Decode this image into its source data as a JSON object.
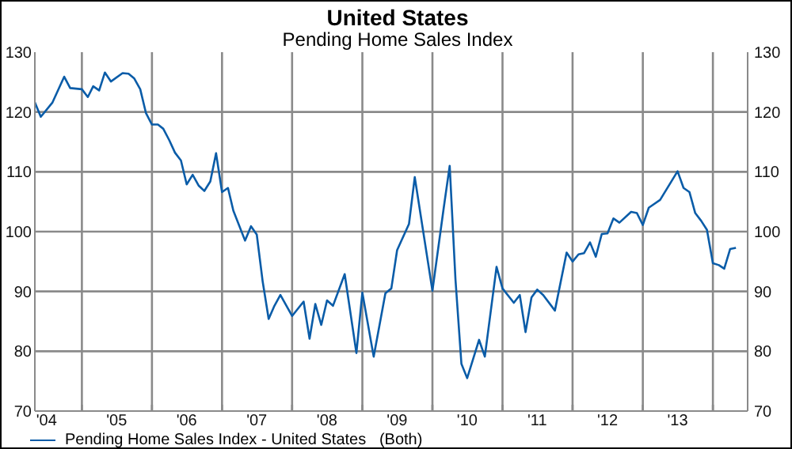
{
  "chart_data": {
    "type": "line",
    "title": "United States",
    "subtitle": "Pending Home Sales Index",
    "x": [
      "2004-05",
      "2004-06",
      "2004-08",
      "2004-10",
      "2004-11",
      "2005-01",
      "2005-02",
      "2005-03",
      "2005-04",
      "2005-05",
      "2005-06",
      "2005-08",
      "2005-09",
      "2005-10",
      "2005-11",
      "2005-12",
      "2006-01",
      "2006-02",
      "2006-03",
      "2006-04",
      "2006-05",
      "2006-06",
      "2006-07",
      "2006-08",
      "2006-09",
      "2006-10",
      "2006-11",
      "2006-12",
      "2007-01",
      "2007-02",
      "2007-03",
      "2007-05",
      "2007-06",
      "2007-07",
      "2007-08",
      "2007-09",
      "2007-10",
      "2007-11",
      "2008-01",
      "2008-03",
      "2008-04",
      "2008-05",
      "2008-06",
      "2008-07",
      "2008-08",
      "2008-10",
      "2008-12",
      "2009-01",
      "2009-03",
      "2009-05",
      "2009-06",
      "2009-07",
      "2009-09",
      "2009-10",
      "2010-01",
      "2010-03",
      "2010-04",
      "2010-05",
      "2010-06",
      "2010-07",
      "2010-09",
      "2010-10",
      "2010-12",
      "2011-01",
      "2011-03",
      "2011-04",
      "2011-05",
      "2011-06",
      "2011-07",
      "2011-08",
      "2011-10",
      "2011-12",
      "2012-01",
      "2012-02",
      "2012-03",
      "2012-04",
      "2012-05",
      "2012-06",
      "2012-07",
      "2012-08",
      "2012-09",
      "2012-11",
      "2012-12",
      "2013-01",
      "2013-02",
      "2013-04",
      "2013-07",
      "2013-08",
      "2013-09",
      "2013-10",
      "2013-11",
      "2013-12",
      "2014-01",
      "2014-02",
      "2014-03",
      "2014-04",
      "2014-05"
    ],
    "series": [
      {
        "name": "Pending Home Sales Index - United States   (Both)",
        "color": "#0a5ca8",
        "values": [
          121.6,
          119.2,
          121.6,
          125.9,
          124,
          123.8,
          122.5,
          124.3,
          123.6,
          126.6,
          125.1,
          126.5,
          126.4,
          125.6,
          123.8,
          119.8,
          117.9,
          117.9,
          117.2,
          115.3,
          113.2,
          111.9,
          107.9,
          109.5,
          107.7,
          106.8,
          108.4,
          113.1,
          106.6,
          107.3,
          103.5,
          98.5,
          100.9,
          99.5,
          91.6,
          85.4,
          87.6,
          89.4,
          85.9,
          88.3,
          82.1,
          87.9,
          84.4,
          88.5,
          87.6,
          92.9,
          79.7,
          89.8,
          79.1,
          89.7,
          90.5,
          96.9,
          101.3,
          109.1,
          90.1,
          104,
          111,
          92,
          77.9,
          75.5,
          81.9,
          79.1,
          94.1,
          90.5,
          88.1,
          89.4,
          83.2,
          89,
          90.3,
          89.4,
          86.8,
          96.5,
          95,
          96.2,
          96.4,
          98.2,
          95.8,
          99.6,
          99.7,
          102.2,
          101.5,
          103.3,
          103.1,
          101.1,
          104,
          105.3,
          110.1,
          107.3,
          106.6,
          103.1,
          101.8,
          100.3,
          94.7,
          94.4,
          93.8,
          97.1,
          97.3
        ]
      }
    ],
    "xlim": [
      "2004-05",
      "2014-07"
    ],
    "xticks": [
      {
        "value": "2004-07",
        "label": "'04"
      },
      {
        "value": "2005-01",
        "label": null
      },
      {
        "value": "2005-07",
        "label": "'05"
      },
      {
        "value": "2006-01",
        "label": null
      },
      {
        "value": "2006-07",
        "label": "'06"
      },
      {
        "value": "2007-01",
        "label": null
      },
      {
        "value": "2007-07",
        "label": "'07"
      },
      {
        "value": "2008-01",
        "label": null
      },
      {
        "value": "2008-07",
        "label": "'08"
      },
      {
        "value": "2009-01",
        "label": null
      },
      {
        "value": "2009-07",
        "label": "'09"
      },
      {
        "value": "2010-01",
        "label": null
      },
      {
        "value": "2010-07",
        "label": "'10"
      },
      {
        "value": "2011-01",
        "label": null
      },
      {
        "value": "2011-07",
        "label": "'11"
      },
      {
        "value": "2012-01",
        "label": null
      },
      {
        "value": "2012-07",
        "label": "'12"
      },
      {
        "value": "2013-01",
        "label": null
      },
      {
        "value": "2013-07",
        "label": "'13"
      },
      {
        "value": "2014-01",
        "label": null
      }
    ],
    "ylim": [
      70,
      130
    ],
    "yticks": [
      70,
      80,
      90,
      100,
      110,
      120,
      130
    ],
    "y2lim": [
      70,
      130
    ],
    "y2ticks": [
      70,
      80,
      90,
      100,
      110,
      120,
      130
    ],
    "grid": true,
    "legend": "bottom left",
    "marker": "none",
    "line_style": "solid"
  }
}
